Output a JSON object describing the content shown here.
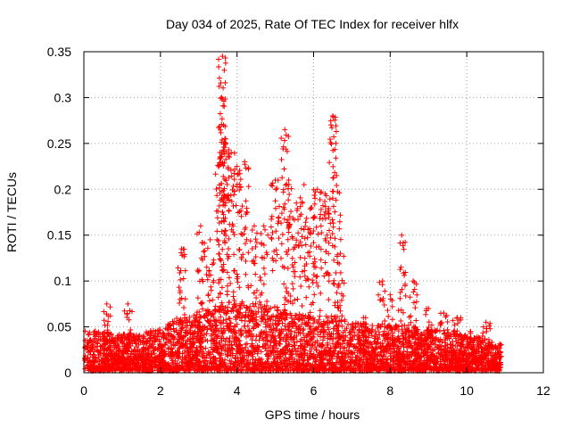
{
  "chart_data": {
    "type": "scatter",
    "title": "Day 034 of 2025, Rate Of TEC Index for receiver hlfx",
    "xlabel": "GPS time / hours",
    "ylabel": "ROTI / TECUs",
    "xlim": [
      0,
      12
    ],
    "ylim": [
      0,
      0.35
    ],
    "x_ticks": [
      0,
      2,
      4,
      6,
      8,
      10,
      12
    ],
    "x_tick_labels": [
      "0",
      "2",
      "4",
      "6",
      "8",
      "10",
      "12"
    ],
    "y_ticks": [
      0,
      0.05,
      0.1,
      0.15,
      0.2,
      0.25,
      0.3,
      0.35
    ],
    "y_tick_labels": [
      "0",
      "0.05",
      "0.1",
      "0.15",
      "0.2",
      "0.25",
      "0.3",
      "0.35"
    ],
    "grid": true,
    "marker": "plus",
    "marker_color": "#ff0000",
    "series": [
      {
        "name": "ROTI",
        "baseline_envelope": {
          "x": [
            0.0,
            1.0,
            2.0,
            2.5,
            3.0,
            3.5,
            4.0,
            4.5,
            5.0,
            5.5,
            6.0,
            6.5,
            7.0,
            7.5,
            8.0,
            8.5,
            9.0,
            9.5,
            10.0,
            10.5,
            10.9
          ],
          "y_max": [
            0.045,
            0.04,
            0.045,
            0.06,
            0.065,
            0.07,
            0.075,
            0.075,
            0.07,
            0.065,
            0.06,
            0.06,
            0.055,
            0.05,
            0.05,
            0.05,
            0.045,
            0.045,
            0.04,
            0.035,
            0.03
          ]
        },
        "peaks": [
          {
            "x": 0.6,
            "y": 0.075
          },
          {
            "x": 1.15,
            "y": 0.075
          },
          {
            "x": 2.55,
            "y": 0.135
          },
          {
            "x": 3.05,
            "y": 0.16
          },
          {
            "x": 3.3,
            "y": 0.145
          },
          {
            "x": 3.55,
            "y": 0.24
          },
          {
            "x": 3.6,
            "y": 0.3
          },
          {
            "x": 3.62,
            "y": 0.345
          },
          {
            "x": 3.7,
            "y": 0.255
          },
          {
            "x": 3.85,
            "y": 0.24
          },
          {
            "x": 4.0,
            "y": 0.225
          },
          {
            "x": 4.2,
            "y": 0.23
          },
          {
            "x": 4.45,
            "y": 0.16
          },
          {
            "x": 4.7,
            "y": 0.16
          },
          {
            "x": 5.0,
            "y": 0.21
          },
          {
            "x": 5.25,
            "y": 0.265
          },
          {
            "x": 5.35,
            "y": 0.21
          },
          {
            "x": 5.55,
            "y": 0.185
          },
          {
            "x": 5.75,
            "y": 0.205
          },
          {
            "x": 5.95,
            "y": 0.18
          },
          {
            "x": 6.1,
            "y": 0.2
          },
          {
            "x": 6.3,
            "y": 0.195
          },
          {
            "x": 6.5,
            "y": 0.28
          },
          {
            "x": 6.6,
            "y": 0.215
          },
          {
            "x": 6.7,
            "y": 0.13
          },
          {
            "x": 7.3,
            "y": 0.06
          },
          {
            "x": 7.8,
            "y": 0.1
          },
          {
            "x": 8.0,
            "y": 0.085
          },
          {
            "x": 8.3,
            "y": 0.15
          },
          {
            "x": 8.6,
            "y": 0.1
          },
          {
            "x": 9.0,
            "y": 0.07
          },
          {
            "x": 9.4,
            "y": 0.065
          },
          {
            "x": 9.75,
            "y": 0.06
          },
          {
            "x": 10.1,
            "y": 0.045
          },
          {
            "x": 10.5,
            "y": 0.055
          }
        ],
        "x_range": [
          0.0,
          10.9
        ]
      }
    ]
  }
}
